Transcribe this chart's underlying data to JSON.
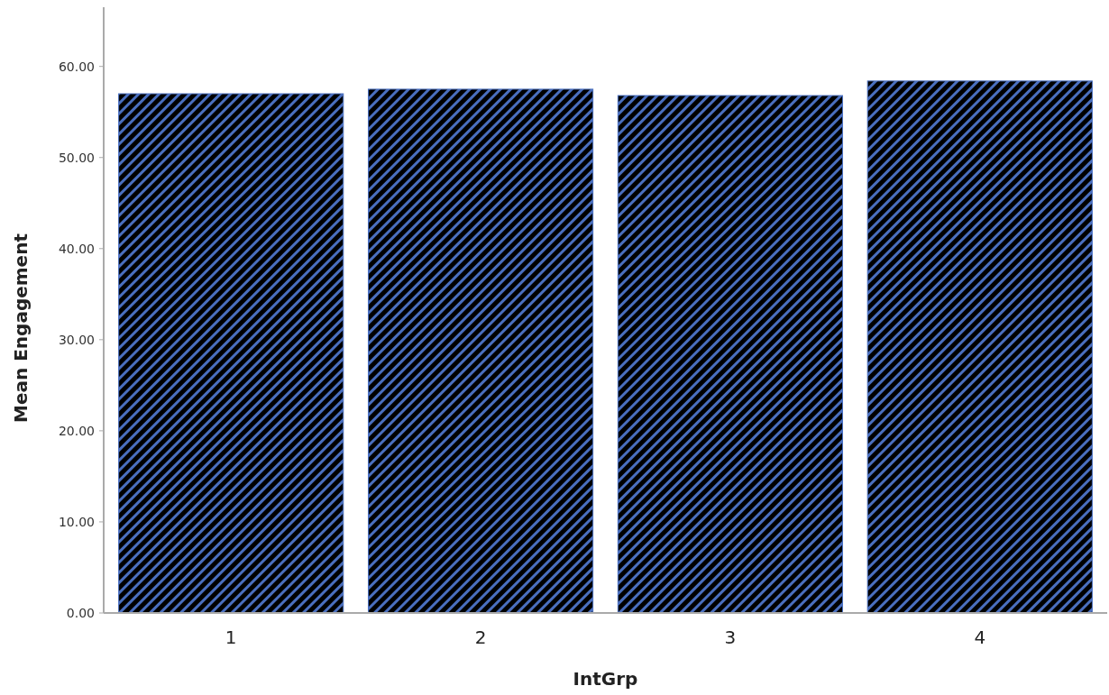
{
  "chart_data": {
    "type": "bar",
    "xlabel": "IntGrp",
    "ylabel": "Mean Engagement",
    "categories": [
      "1",
      "2",
      "3",
      "4"
    ],
    "values": [
      57.0,
      57.5,
      56.8,
      58.4
    ],
    "color": "#4a6fbf",
    "ylim": [
      0,
      66.5
    ],
    "yticks": [
      {
        "value": 0,
        "label": "0.00"
      },
      {
        "value": 10,
        "label": "10.00"
      },
      {
        "value": 20,
        "label": "20.00"
      },
      {
        "value": 30,
        "label": "30.00"
      },
      {
        "value": 40,
        "label": "40.00"
      },
      {
        "value": 50,
        "label": "50.00"
      },
      {
        "value": 60,
        "label": "60.00"
      }
    ],
    "grid": false
  }
}
